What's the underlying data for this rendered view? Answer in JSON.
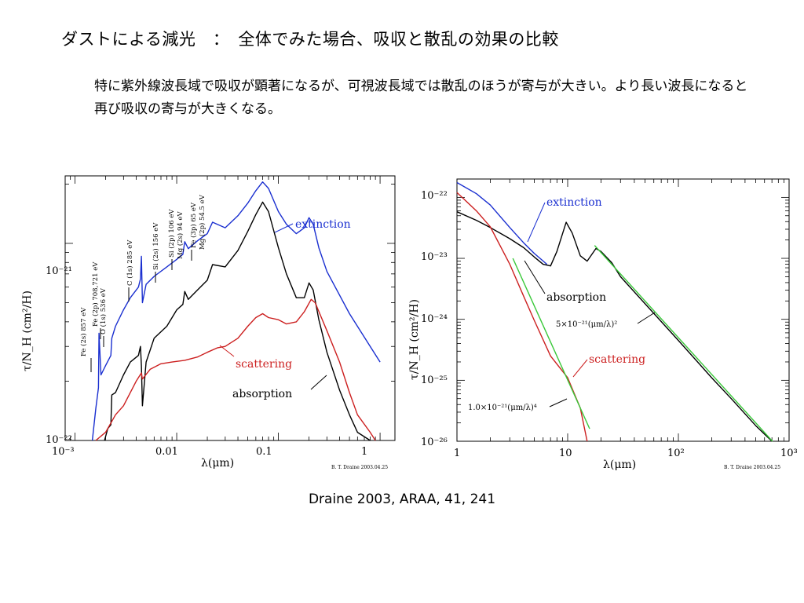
{
  "slide": {
    "title": "ダストによる減光　：　全体でみた場合、吸収と散乱の効果の比較",
    "body": "特に紫外線波長域で吸収が顕著になるが、可視波長域では散乱のほうが寄与が大きい。より長い波長になると再び吸収の寄与が大きくなる。",
    "caption": "Draine 2003, ARAA, 41, 241"
  },
  "chart_data": [
    {
      "type": "line",
      "xlabel": "λ(μm)",
      "ylabel": "τ/N_H (cm²/H)",
      "xscale": "log",
      "yscale": "log",
      "xlim": [
        0.0008,
        1.4
      ],
      "ylim": [
        1e-22,
        2.2e-21
      ],
      "xticklabels": [
        "10⁻³",
        "0.01",
        "0.1",
        "1"
      ],
      "yticklabels": [
        "10⁻²¹",
        "10⁻²²"
      ],
      "credit": "B. T. Draine 2003.04.25",
      "series": [
        {
          "name": "extinction",
          "color": "#1a2fd0",
          "x": [
            0.00148,
            0.0016,
            0.0017,
            0.00172,
            0.0018,
            0.002,
            0.00225,
            0.0023,
            0.0025,
            0.003,
            0.0035,
            0.0042,
            0.0044,
            0.0045,
            0.0046,
            0.005,
            0.006,
            0.008,
            0.01,
            0.0115,
            0.012,
            0.013,
            0.016,
            0.02,
            0.0225,
            0.03,
            0.04,
            0.05,
            0.06,
            0.07,
            0.08,
            0.1,
            0.12,
            0.15,
            0.18,
            0.2,
            0.22,
            0.25,
            0.3,
            0.5,
            0.8,
            1.0
          ],
          "y": [
            1e-22,
            1.45e-22,
            1.85e-22,
            3.5e-22,
            2.15e-22,
            2.4e-22,
            2.7e-22,
            3.3e-22,
            3.8e-22,
            4.6e-22,
            5.3e-22,
            6e-22,
            6.6e-22,
            8.6e-22,
            5e-22,
            6.2e-22,
            6.8e-22,
            7.6e-22,
            8.3e-22,
            8.8e-22,
            1.02e-21,
            9.4e-22,
            1.03e-21,
            1.12e-21,
            1.28e-21,
            1.2e-21,
            1.38e-21,
            1.6e-21,
            1.85e-21,
            2.05e-21,
            1.9e-21,
            1.45e-21,
            1.25e-21,
            1.12e-21,
            1.2e-21,
            1.35e-21,
            1.25e-21,
            9.5e-22,
            7.2e-22,
            4.4e-22,
            3e-22,
            2.5e-22
          ]
        },
        {
          "name": "absorption",
          "color": "#000000",
          "x": [
            0.00195,
            0.0021,
            0.00225,
            0.0023,
            0.0025,
            0.003,
            0.0035,
            0.0042,
            0.0044,
            0.0045,
            0.0046,
            0.005,
            0.006,
            0.008,
            0.01,
            0.0115,
            0.012,
            0.013,
            0.016,
            0.02,
            0.0225,
            0.03,
            0.04,
            0.05,
            0.06,
            0.07,
            0.08,
            0.1,
            0.12,
            0.15,
            0.18,
            0.2,
            0.22,
            0.25,
            0.3,
            0.4,
            0.5,
            0.6,
            0.8
          ],
          "y": [
            1e-22,
            1.15e-22,
            1.2e-22,
            1.7e-22,
            1.75e-22,
            2.15e-22,
            2.5e-22,
            2.7e-22,
            3e-22,
            2.4e-22,
            1.5e-22,
            2.5e-22,
            3.3e-22,
            3.8e-22,
            4.6e-22,
            4.9e-22,
            5.7e-22,
            5.2e-22,
            5.8e-22,
            6.5e-22,
            7.8e-22,
            7.6e-22,
            9.2e-22,
            1.15e-21,
            1.4e-21,
            1.62e-21,
            1.45e-21,
            9.5e-22,
            7e-22,
            5.3e-22,
            5.3e-22,
            6.3e-22,
            5.8e-22,
            4.1e-22,
            2.8e-22,
            1.8e-22,
            1.35e-22,
            1.1e-22,
            1e-22
          ]
        },
        {
          "name": "scattering",
          "color": "#cc1f1f",
          "x": [
            0.0016,
            0.002,
            0.0023,
            0.0025,
            0.003,
            0.004,
            0.0045,
            0.0046,
            0.0055,
            0.007,
            0.009,
            0.012,
            0.016,
            0.02,
            0.025,
            0.03,
            0.04,
            0.05,
            0.06,
            0.07,
            0.08,
            0.1,
            0.12,
            0.15,
            0.18,
            0.21,
            0.23,
            0.26,
            0.3,
            0.4,
            0.5,
            0.6,
            0.8,
            0.9
          ],
          "y": [
            1e-22,
            1.1e-22,
            1.25e-22,
            1.35e-22,
            1.5e-22,
            2e-22,
            2.2e-22,
            2.05e-22,
            2.3e-22,
            2.45e-22,
            2.5e-22,
            2.55e-22,
            2.65e-22,
            2.8e-22,
            2.95e-22,
            3e-22,
            3.3e-22,
            3.8e-22,
            4.2e-22,
            4.4e-22,
            4.2e-22,
            4.1e-22,
            3.9e-22,
            4e-22,
            4.5e-22,
            5.2e-22,
            5e-22,
            4.3e-22,
            3.6e-22,
            2.5e-22,
            1.75e-22,
            1.35e-22,
            1.1e-22,
            1e-22
          ]
        }
      ],
      "annotations": [
        "Fe (2s) 857 eV",
        "Fe (2p) 708,721 eV",
        "O (1s) 536 eV",
        "C (1s) 285 eV",
        "Si (2s) 156 eV",
        "Si (2p) 106 eV",
        "Mg (2s) 94 eV",
        "Fe (3p) 65 eV",
        "Mg (2p) 54.5 eV"
      ]
    },
    {
      "type": "line",
      "xlabel": "λ(μm)",
      "ylabel": "τ/N_H (cm²/H)",
      "xscale": "log",
      "yscale": "log",
      "xlim": [
        1,
        1000
      ],
      "ylim": [
        1e-26,
        2e-22
      ],
      "xticklabels": [
        "1",
        "10",
        "10²",
        "10³"
      ],
      "yticklabels": [
        "10⁻²²",
        "10⁻²³",
        "10⁻²⁴",
        "10⁻²⁵",
        "10⁻²⁶"
      ],
      "credit": "B. T. Draine 2003.04.25",
      "series": [
        {
          "name": "extinction",
          "color": "#1a2fd0",
          "x": [
            1,
            1.5,
            2,
            3,
            4,
            5,
            6.5
          ],
          "y": [
            1.75e-22,
            1.15e-22,
            7.5e-23,
            3.2e-23,
            1.8e-23,
            1.2e-23,
            8e-24
          ]
        },
        {
          "name": "absorption",
          "color": "#000000",
          "x": [
            1,
            1.5,
            2,
            3,
            4,
            5,
            6,
            7,
            8,
            9.7,
            11,
            13,
            15,
            18,
            20,
            25,
            30,
            50,
            100,
            200,
            300,
            500,
            700
          ],
          "y": [
            5.8e-23,
            4.2e-23,
            3.2e-23,
            2.1e-23,
            1.5e-23,
            1.05e-23,
            8e-24,
            7.5e-24,
            1.3e-23,
            3.9e-23,
            2.6e-23,
            1.1e-23,
            9e-24,
            1.45e-23,
            1.3e-23,
            8.5e-24,
            5e-24,
            1.8e-24,
            4.5e-25,
            1.1e-25,
            5e-26,
            1.8e-26,
            9.5e-27
          ]
        },
        {
          "name": "scattering",
          "color": "#cc1f1f",
          "x": [
            1,
            1.5,
            2,
            3,
            4,
            5,
            7,
            10,
            13,
            15
          ],
          "y": [
            1.2e-22,
            6e-23,
            3.3e-23,
            8e-24,
            2.4e-24,
            9.5e-25,
            2.5e-25,
            1.1e-25,
            3.5e-26,
            1e-26
          ]
        },
        {
          "name": "1.0×10⁻²¹(μm/λ)⁴",
          "color": "#39c839",
          "x": [
            3.2,
            15.8
          ],
          "y": [
            1e-23,
            1.6e-26
          ]
        },
        {
          "name": "5×10⁻²¹(μm/λ)²",
          "color": "#39c839",
          "x": [
            17.5,
            707
          ],
          "y": [
            1.63e-23,
            1e-26
          ]
        }
      ],
      "annotations": [
        "extinction",
        "absorption",
        "scattering",
        "5×10⁻²¹(μm/λ)²",
        "1.0×10⁻²¹(μm/λ)⁴"
      ]
    }
  ]
}
